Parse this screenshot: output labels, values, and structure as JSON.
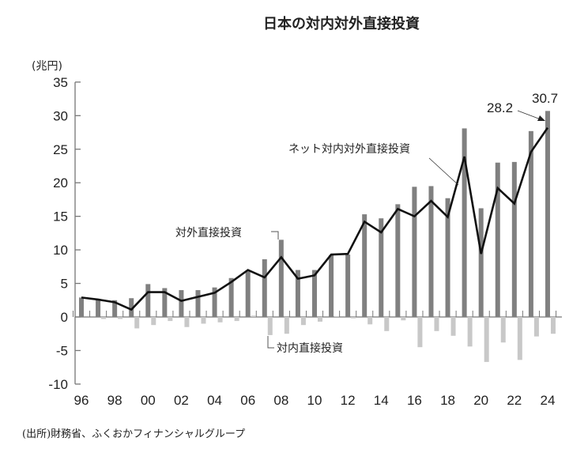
{
  "chart_data": {
    "type": "bar",
    "title": "日本の対内対外直接投資",
    "ylabel": "(兆円)",
    "xlabel": "",
    "ylim": [
      -10,
      35
    ],
    "yticks": [
      35,
      30,
      25,
      20,
      15,
      10,
      5,
      0,
      -5,
      -10
    ],
    "x": [
      1996,
      1997,
      1998,
      1999,
      2000,
      2001,
      2002,
      2003,
      2004,
      2005,
      2006,
      2007,
      2008,
      2009,
      2010,
      2011,
      2012,
      2013,
      2014,
      2015,
      2016,
      2017,
      2018,
      2019,
      2020,
      2021,
      2022,
      2023,
      2024
    ],
    "xtick_labels": [
      "96",
      "98",
      "00",
      "02",
      "04",
      "06",
      "08",
      "10",
      "12",
      "14",
      "16",
      "18",
      "20",
      "22",
      "24"
    ],
    "series": [
      {
        "name": "対外直接投資",
        "type": "bar",
        "color": "#808080",
        "values": [
          2.9,
          2.7,
          2.5,
          2.8,
          4.9,
          4.3,
          4.0,
          4.0,
          4.4,
          5.8,
          6.8,
          8.6,
          11.5,
          7.0,
          7.0,
          9.2,
          9.3,
          15.3,
          14.7,
          16.8,
          19.4,
          19.5,
          17.7,
          28.1,
          16.2,
          23.0,
          23.1,
          27.7,
          30.7
        ]
      },
      {
        "name": "対内直接投資",
        "type": "bar",
        "color": "#c8c8c8",
        "values": [
          0,
          -0.3,
          -0.3,
          -1.7,
          -1.2,
          -0.6,
          -1.5,
          -1.0,
          -0.8,
          -0.6,
          0.2,
          -2.7,
          -2.5,
          -1.2,
          -0.7,
          0.1,
          -0.2,
          -1.1,
          -2.1,
          -0.5,
          -4.5,
          -2.1,
          -2.8,
          -4.4,
          -6.7,
          -3.8,
          -6.4,
          -2.9,
          -2.5
        ]
      },
      {
        "name": "ネット対内対外直接投資",
        "type": "line",
        "color": "#111111",
        "values": [
          2.9,
          2.6,
          2.2,
          1.1,
          3.7,
          3.7,
          2.4,
          3.0,
          3.6,
          5.2,
          7.0,
          5.9,
          8.9,
          5.7,
          6.2,
          9.3,
          9.4,
          14.2,
          12.6,
          16.1,
          15.0,
          17.3,
          14.9,
          23.9,
          9.4,
          19.2,
          16.9,
          24.6,
          28.2
        ]
      }
    ],
    "annotations": {
      "outward": "対外直接投資",
      "inward": "対内直接投資",
      "net": "ネット対内対外直接投資",
      "net_2024": "28.2",
      "outward_2024": "30.7"
    },
    "source": "(出所)財務省、ふくおかフィナンシャルグループ"
  }
}
